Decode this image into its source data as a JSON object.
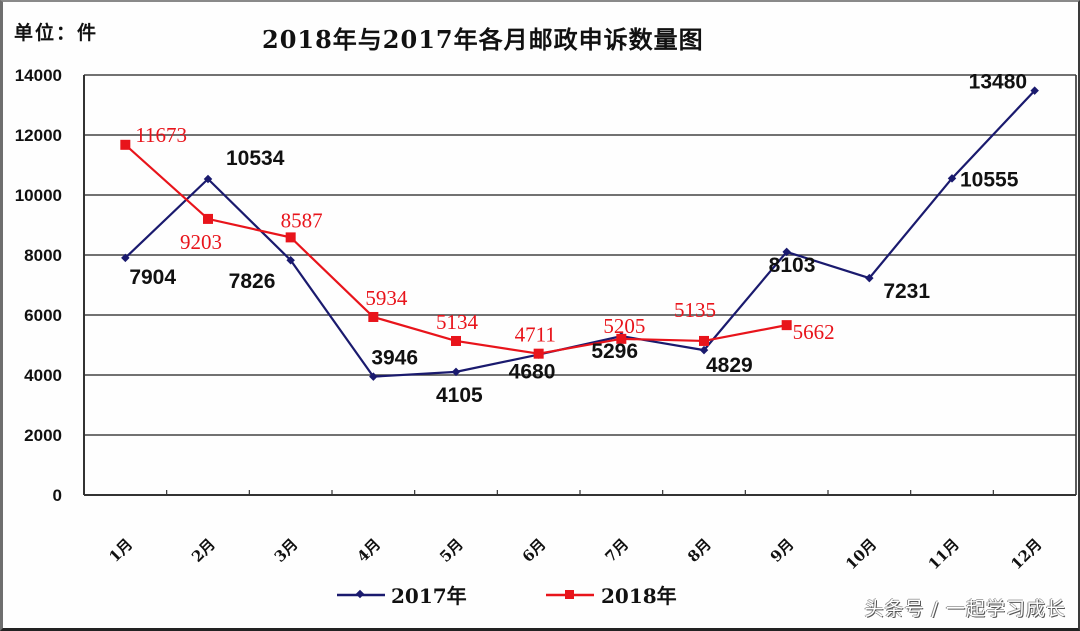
{
  "header": {
    "unit": "单位：件",
    "title": "2018年与2017年各月邮政申诉数量图"
  },
  "legend": {
    "items": [
      {
        "label": "2017年",
        "color": "#1a1a6e",
        "marker": "diamond"
      },
      {
        "label": "2018年",
        "color": "#e8141b",
        "marker": "square"
      }
    ]
  },
  "watermark": "头条号 / 一起学习成长",
  "chart_data": {
    "type": "line",
    "title": "2018年与2017年各月邮政申诉数量图",
    "unit_label": "单位：件",
    "xlabel": "",
    "ylabel": "",
    "ylim": [
      0,
      14000
    ],
    "yticks": [
      0,
      2000,
      4000,
      6000,
      8000,
      10000,
      12000,
      14000
    ],
    "grid": true,
    "legend_position": "bottom",
    "categories": [
      "1月",
      "2月",
      "3月",
      "4月",
      "5月",
      "6月",
      "7月",
      "8月",
      "9月",
      "10月",
      "11月",
      "12月"
    ],
    "series": [
      {
        "name": "2017年",
        "color": "#1a1a6e",
        "values": [
          7904,
          10534,
          7826,
          3946,
          4105,
          4680,
          5296,
          4829,
          8103,
          7231,
          10555,
          13480
        ]
      },
      {
        "name": "2018年",
        "color": "#e8141b",
        "values": [
          11673,
          9203,
          8587,
          5934,
          5134,
          4711,
          5205,
          5135,
          5662
        ]
      }
    ]
  }
}
